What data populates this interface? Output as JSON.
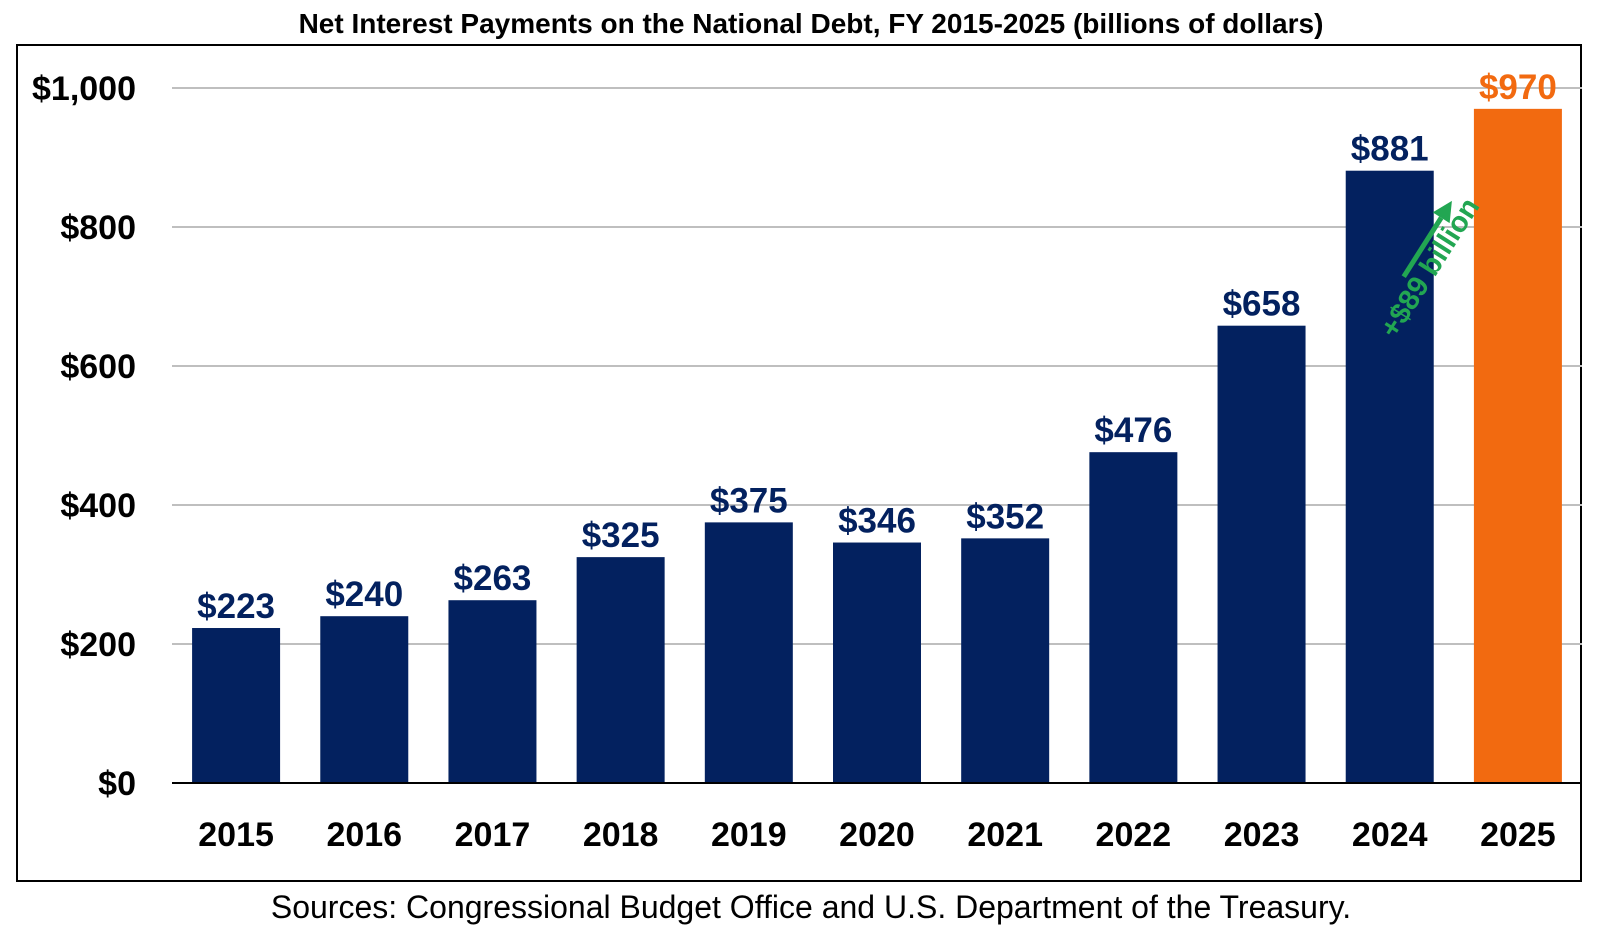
{
  "chart_data": {
    "type": "bar",
    "title": "Net Interest Payments on the National Debt, FY 2015-2025 (billions of dollars)",
    "xlabel": "",
    "ylabel": "",
    "categories": [
      "2015",
      "2016",
      "2017",
      "2018",
      "2019",
      "2020",
      "2021",
      "2022",
      "2023",
      "2024",
      "2025"
    ],
    "values": [
      223,
      240,
      263,
      325,
      375,
      346,
      352,
      476,
      658,
      881,
      970
    ],
    "value_labels": [
      "$223",
      "$240",
      "$263",
      "$325",
      "$375",
      "$346",
      "$352",
      "$476",
      "$658",
      "$881",
      "$970"
    ],
    "ylim": [
      0,
      1000
    ],
    "yticks": [
      0,
      200,
      400,
      600,
      800,
      1000
    ],
    "ytick_labels": [
      "$0",
      "$200",
      "$400",
      "$600",
      "$800",
      "$1,000"
    ],
    "grid": true,
    "colors": {
      "bar": "#03215F",
      "highlight_bar": "#F26A10",
      "annotation": "#22A652",
      "grid": "#BFBFBF"
    },
    "highlight_index": 10,
    "annotation": {
      "text": "+$89 billion",
      "from_category": "2024",
      "to_category": "2025"
    },
    "source": "Sources: Congressional Budget Office and U.S. Department of the Treasury."
  }
}
